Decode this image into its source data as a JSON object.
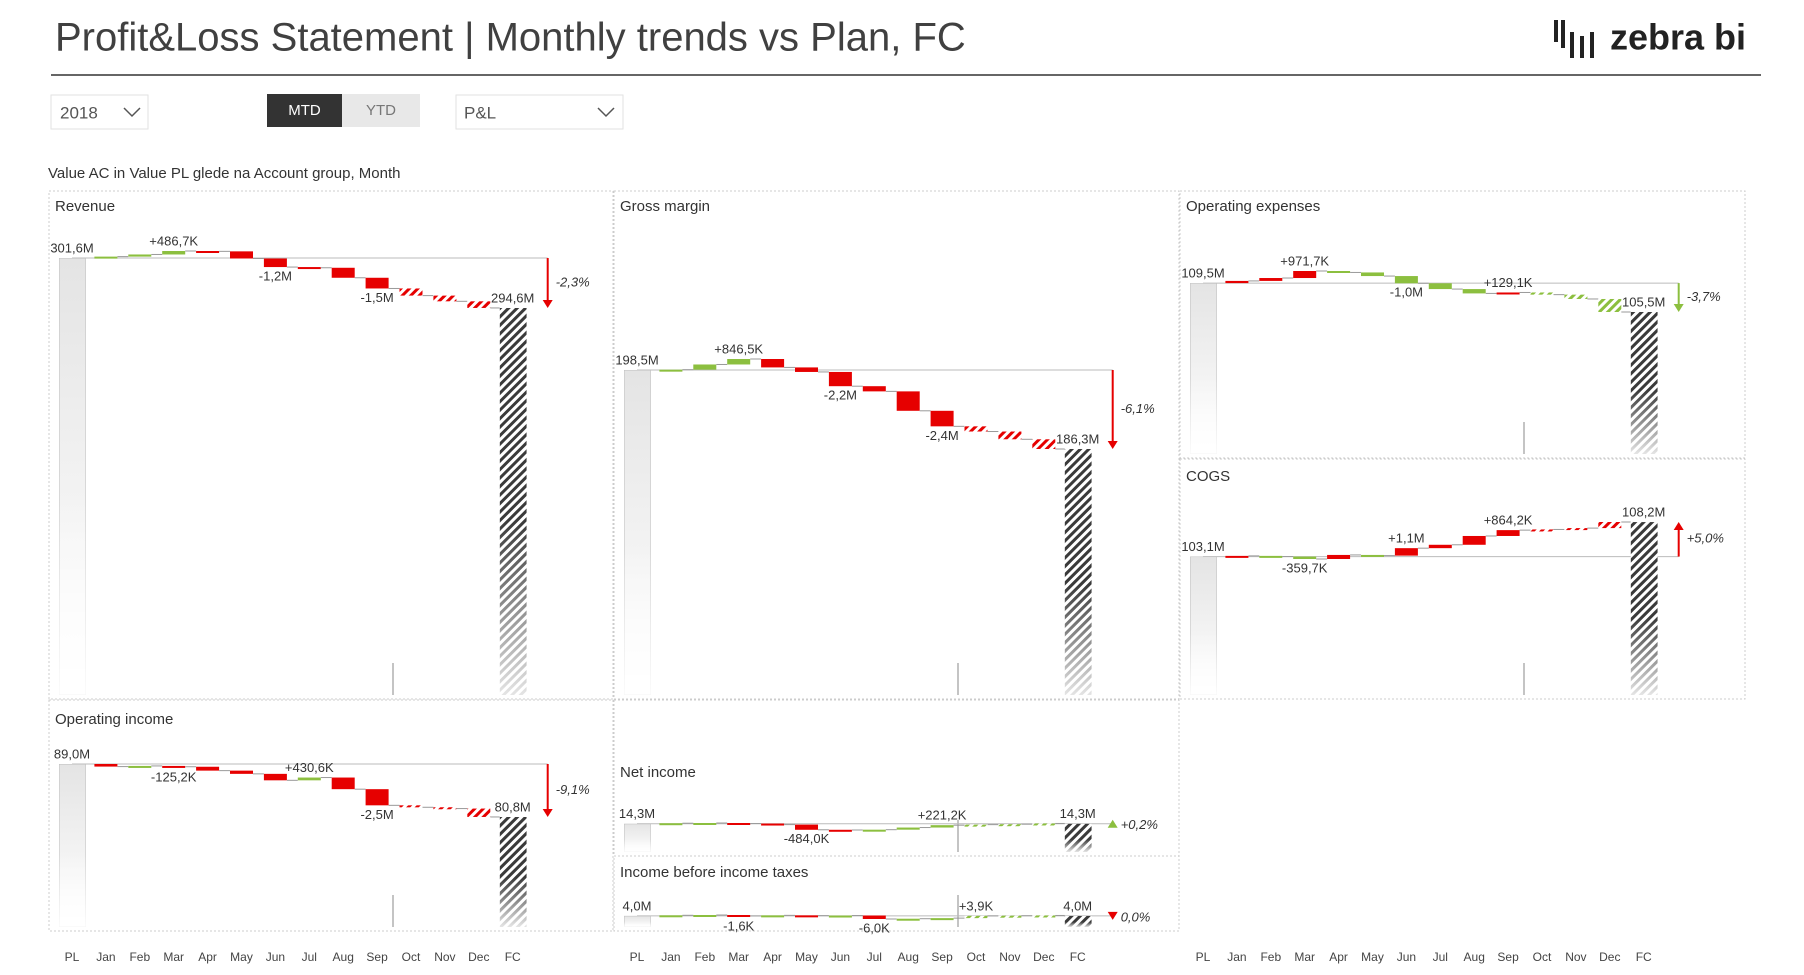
{
  "header": {
    "title": "Profit&Loss Statement | Monthly trends vs Plan, FC",
    "brand": "zebra bi"
  },
  "filters": {
    "year": "2018",
    "modes": [
      "MTD",
      "YTD"
    ],
    "account": "P&L"
  },
  "subtitle": "Value AC in Value PL glede na Account group, Month",
  "categories": [
    "PL",
    "Jan",
    "Feb",
    "Mar",
    "Apr",
    "May",
    "Jun",
    "Jul",
    "Aug",
    "Sep",
    "Oct",
    "Nov",
    "Dec",
    "FC"
  ],
  "colors": {
    "good": "#8cbf3f",
    "bad": "#e60000",
    "forecast": "#3a3a3a"
  },
  "forecast_from": 9,
  "chart_data": [
    {
      "type": "waterfall",
      "title": "Revenue",
      "invert": false,
      "start": 301.6,
      "start_label": "301,6M",
      "end": 294.6,
      "end_label": "294,6M",
      "values": [
        0.2,
        0.3,
        0.4867,
        -0.05,
        -1.0,
        -1.2,
        -0.1,
        -1.4,
        -1.5,
        -1.0,
        -0.8,
        -0.93
      ],
      "value_labels": [
        null,
        null,
        "+486,7K",
        null,
        null,
        "-1,2M",
        null,
        null,
        "-1,5M",
        null,
        null,
        null
      ],
      "variance": -2.3,
      "variance_label": "-2,3%"
    },
    {
      "type": "waterfall",
      "title": "Gross margin",
      "invert": false,
      "start": 198.5,
      "start_label": "198,5M",
      "end": 186.3,
      "end_label": "186,3M",
      "values": [
        0.05,
        0.8,
        0.8465,
        -1.3,
        -0.7,
        -2.2,
        -0.8,
        -3.0,
        -2.4,
        -0.8,
        -1.2,
        -1.5
      ],
      "value_labels": [
        null,
        null,
        "+846,5K",
        null,
        null,
        "-2,2M",
        null,
        null,
        "-2,4M",
        null,
        null,
        null
      ],
      "variance": -6.1,
      "variance_label": "-6,1%"
    },
    {
      "type": "waterfall",
      "title": "Operating expenses",
      "invert": true,
      "start": 109.5,
      "start_label": "109,5M",
      "end": 105.5,
      "end_label": "105,5M",
      "values": [
        0.3,
        0.4,
        0.9717,
        -0.2,
        -0.5,
        -1.0,
        -0.8,
        -0.6,
        0.1291,
        -0.3,
        -0.6,
        -1.8
      ],
      "value_labels": [
        null,
        null,
        "+971,7K",
        null,
        null,
        "-1,0M",
        null,
        null,
        "+129,1K",
        null,
        null,
        null
      ],
      "variance": -3.7,
      "variance_label": "-3,7%"
    },
    {
      "type": "waterfall",
      "title": "COGS",
      "invert": true,
      "start": 103.1,
      "start_label": "103,1M",
      "end": 108.2,
      "end_label": "108,2M",
      "values": [
        0.1,
        -0.1,
        -0.3597,
        0.6,
        -0.1,
        1.1,
        0.5,
        1.3,
        0.8642,
        0.1,
        0.2,
        0.9
      ],
      "value_labels": [
        null,
        null,
        "-359,7K",
        null,
        null,
        "+1,1M",
        null,
        null,
        "+864,2K",
        null,
        null,
        null
      ],
      "variance": 5.0,
      "variance_label": "+5,0%"
    },
    {
      "type": "waterfall",
      "title": "Operating income",
      "invert": false,
      "start": 89.0,
      "start_label": "89,0M",
      "end": 80.8,
      "end_label": "80,8M",
      "values": [
        -0.4,
        0.1,
        -0.1252,
        -0.6,
        -0.5,
        -1.0,
        0.4306,
        -1.8,
        -2.5,
        -0.3,
        -0.2,
        -1.3
      ],
      "value_labels": [
        null,
        null,
        "-125,2K",
        null,
        null,
        null,
        "+430,6K",
        null,
        "-2,5M",
        null,
        null,
        null
      ],
      "variance": -9.1,
      "variance_label": "-9,1%"
    },
    {
      "type": "waterfall",
      "title": "Net income",
      "invert": false,
      "start": 14.3,
      "start_label": "14,3M",
      "end": 14.3,
      "end_label": "14,3M",
      "values": [
        0.05,
        0.02,
        -0.05,
        -0.1,
        -0.484,
        -0.02,
        0.03,
        0.2,
        0.2212,
        0.05,
        0.04,
        0.07
      ],
      "value_labels": [
        null,
        null,
        null,
        null,
        "-484,0K",
        null,
        null,
        null,
        "+221,2K",
        null,
        null,
        null
      ],
      "variance": 0.2,
      "variance_label": "+0,2%"
    },
    {
      "type": "waterfall",
      "title": "Income before income taxes",
      "invert": false,
      "start": 4.0,
      "start_label": "4,0M",
      "end": 4.0,
      "end_label": "4,0M",
      "values": [
        0.001,
        0.0005,
        -0.0016,
        0.001,
        -0.0005,
        0.0002,
        -0.006,
        0.0005,
        0.001,
        0.0039,
        0.0003,
        0.0004
      ],
      "value_labels": [
        null,
        null,
        "-1,6K",
        null,
        null,
        null,
        "-6,0K",
        null,
        null,
        "+3,9K",
        null,
        null
      ],
      "variance": 0.0,
      "variance_label": "0,0%"
    }
  ]
}
